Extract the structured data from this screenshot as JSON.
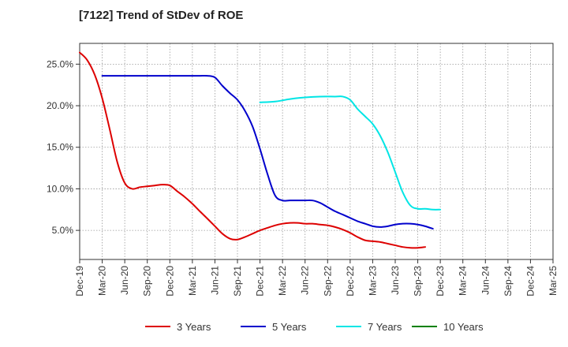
{
  "chart_data": {
    "type": "line",
    "title": "[7122]  Trend of StDev of ROE",
    "xlabel": "",
    "ylabel": "",
    "x_tick_labels": [
      "Dec-19",
      "Mar-20",
      "Jun-20",
      "Sep-20",
      "Dec-20",
      "Mar-21",
      "Jun-21",
      "Sep-21",
      "Dec-21",
      "Mar-22",
      "Jun-22",
      "Sep-22",
      "Dec-22",
      "Mar-23",
      "Jun-23",
      "Sep-23",
      "Dec-23",
      "Mar-24",
      "Jun-24",
      "Sep-24",
      "Dec-24",
      "Mar-25"
    ],
    "y_ticks": [
      5,
      10,
      15,
      20,
      25
    ],
    "y_tick_labels": [
      "5.0%",
      "10.0%",
      "15.0%",
      "20.0%",
      "25.0%"
    ],
    "ylim": [
      1.5,
      27.5
    ],
    "grid": true,
    "legend_position": "bottom",
    "series": [
      {
        "name": "3 Years",
        "color": "#dd0000",
        "points": [
          [
            0,
            26.4
          ],
          [
            0.33,
            25.5
          ],
          [
            0.67,
            23.7
          ],
          [
            1,
            20.9
          ],
          [
            1.33,
            17.2
          ],
          [
            1.67,
            13.2
          ],
          [
            2,
            10.7
          ],
          [
            2.33,
            10.0
          ],
          [
            2.67,
            10.2
          ],
          [
            3,
            10.3
          ],
          [
            3.33,
            10.4
          ],
          [
            3.67,
            10.5
          ],
          [
            4,
            10.4
          ],
          [
            4.33,
            9.7
          ],
          [
            4.67,
            9.0
          ],
          [
            5,
            8.2
          ],
          [
            5.33,
            7.3
          ],
          [
            5.67,
            6.4
          ],
          [
            6,
            5.5
          ],
          [
            6.33,
            4.6
          ],
          [
            6.67,
            4.0
          ],
          [
            7,
            3.9
          ],
          [
            7.33,
            4.2
          ],
          [
            7.67,
            4.6
          ],
          [
            8,
            5.0
          ],
          [
            8.33,
            5.3
          ],
          [
            8.67,
            5.6
          ],
          [
            9,
            5.8
          ],
          [
            9.33,
            5.9
          ],
          [
            9.67,
            5.9
          ],
          [
            10,
            5.8
          ],
          [
            10.33,
            5.8
          ],
          [
            10.67,
            5.7
          ],
          [
            11,
            5.6
          ],
          [
            11.33,
            5.4
          ],
          [
            11.67,
            5.1
          ],
          [
            12,
            4.7
          ],
          [
            12.33,
            4.2
          ],
          [
            12.67,
            3.8
          ],
          [
            13,
            3.7
          ],
          [
            13.33,
            3.6
          ],
          [
            13.67,
            3.4
          ],
          [
            14,
            3.2
          ],
          [
            14.33,
            3.0
          ],
          [
            14.67,
            2.9
          ],
          [
            15,
            2.9
          ],
          [
            15.33,
            3.0
          ]
        ]
      },
      {
        "name": "5 Years",
        "color": "#0000cc",
        "points": [
          [
            1,
            23.6
          ],
          [
            2,
            23.6
          ],
          [
            3,
            23.6
          ],
          [
            4,
            23.6
          ],
          [
            5,
            23.6
          ],
          [
            5.33,
            23.6
          ],
          [
            5.67,
            23.6
          ],
          [
            6,
            23.4
          ],
          [
            6.33,
            22.4
          ],
          [
            6.67,
            21.5
          ],
          [
            7,
            20.7
          ],
          [
            7.33,
            19.4
          ],
          [
            7.67,
            17.5
          ],
          [
            8,
            14.8
          ],
          [
            8.33,
            11.8
          ],
          [
            8.67,
            9.2
          ],
          [
            9,
            8.6
          ],
          [
            9.33,
            8.6
          ],
          [
            9.67,
            8.6
          ],
          [
            10,
            8.6
          ],
          [
            10.33,
            8.6
          ],
          [
            10.67,
            8.3
          ],
          [
            11,
            7.8
          ],
          [
            11.33,
            7.3
          ],
          [
            11.67,
            6.9
          ],
          [
            12,
            6.5
          ],
          [
            12.33,
            6.1
          ],
          [
            12.67,
            5.8
          ],
          [
            13,
            5.5
          ],
          [
            13.33,
            5.4
          ],
          [
            13.67,
            5.5
          ],
          [
            14,
            5.7
          ],
          [
            14.33,
            5.8
          ],
          [
            14.67,
            5.8
          ],
          [
            15,
            5.7
          ],
          [
            15.33,
            5.5
          ],
          [
            15.67,
            5.2
          ]
        ]
      },
      {
        "name": "7 Years",
        "color": "#00e5e5",
        "points": [
          [
            8,
            20.4
          ],
          [
            8.67,
            20.5
          ],
          [
            9.33,
            20.8
          ],
          [
            10,
            21.0
          ],
          [
            10.67,
            21.1
          ],
          [
            11.33,
            21.1
          ],
          [
            11.67,
            21.1
          ],
          [
            12,
            20.7
          ],
          [
            12.33,
            19.6
          ],
          [
            12.67,
            18.7
          ],
          [
            13,
            17.8
          ],
          [
            13.33,
            16.4
          ],
          [
            13.67,
            14.4
          ],
          [
            14,
            12.0
          ],
          [
            14.33,
            9.6
          ],
          [
            14.67,
            8.0
          ],
          [
            15,
            7.6
          ],
          [
            15.33,
            7.6
          ],
          [
            15.67,
            7.5
          ],
          [
            16,
            7.5
          ]
        ]
      },
      {
        "name": "10 Years",
        "color": "#008000",
        "points": []
      }
    ]
  }
}
